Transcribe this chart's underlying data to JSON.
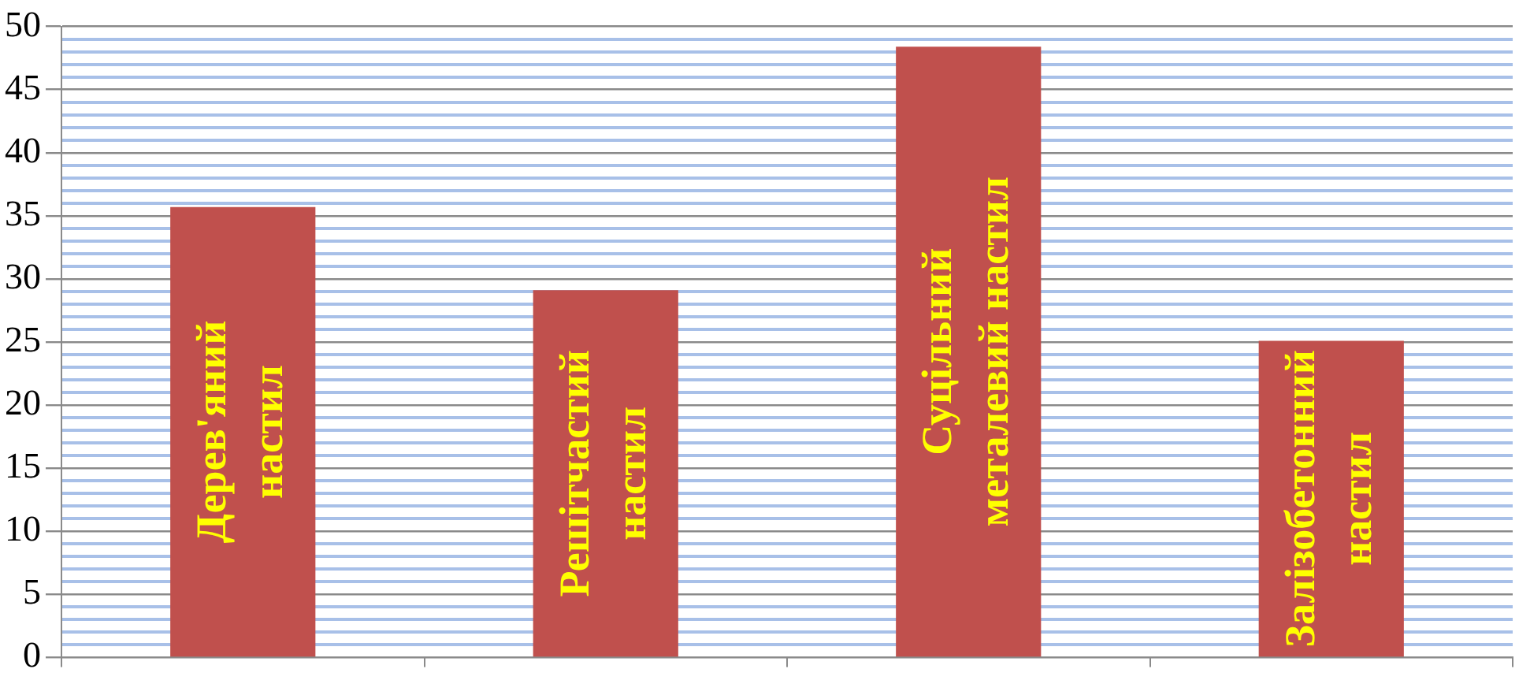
{
  "chart_data": {
    "type": "bar",
    "categories": [
      "Дерев'яний\nнастил",
      "Решітчастий\nнастил",
      "Суцільний\nметалевий настил",
      "Залізобетонний\nнастил"
    ],
    "values": [
      35.7,
      29.1,
      48.4,
      25.1
    ],
    "color": "#c0504d",
    "ylim": [
      0,
      50
    ],
    "yticks": [
      0,
      {
        "value": 1,
        "label": null
      },
      {
        "value": 2,
        "label": null
      },
      {
        "value": 3,
        "label": null
      },
      {
        "value": 4,
        "label": null
      },
      5,
      {
        "value": 6,
        "label": null
      },
      {
        "value": 7,
        "label": null
      },
      {
        "value": 8,
        "label": null
      },
      {
        "value": 9,
        "label": null
      },
      10,
      {
        "value": 11,
        "label": null
      },
      {
        "value": 12,
        "label": null
      },
      {
        "value": 13,
        "label": null
      },
      {
        "value": 14,
        "label": null
      },
      15,
      {
        "value": 16,
        "label": null
      },
      {
        "value": 17,
        "label": null
      },
      {
        "value": 18,
        "label": null
      },
      {
        "value": 19,
        "label": null
      },
      20,
      {
        "value": 21,
        "label": null
      },
      {
        "value": 22,
        "label": null
      },
      {
        "value": 23,
        "label": null
      },
      {
        "value": 24,
        "label": null
      },
      25,
      {
        "value": 26,
        "label": null
      },
      {
        "value": 27,
        "label": null
      },
      {
        "value": 28,
        "label": null
      },
      {
        "value": 29,
        "label": null
      },
      30,
      {
        "value": 31,
        "label": null
      },
      {
        "value": 32,
        "label": null
      },
      {
        "value": 33,
        "label": null
      },
      {
        "value": 34,
        "label": null
      },
      35,
      {
        "value": 36,
        "label": null
      },
      {
        "value": 37,
        "label": null
      },
      {
        "value": 38,
        "label": null
      },
      {
        "value": 39,
        "label": null
      },
      40,
      {
        "value": 41,
        "label": null
      },
      {
        "value": 42,
        "label": null
      },
      {
        "value": 43,
        "label": null
      },
      {
        "value": 44,
        "label": null
      },
      45,
      {
        "value": 46,
        "label": null
      },
      {
        "value": 47,
        "label": null
      },
      {
        "value": 48,
        "label": null
      },
      {
        "value": 49,
        "label": null
      },
      50
    ],
    "grid": "y",
    "legend": false,
    "tick_labels": "y"
  }
}
